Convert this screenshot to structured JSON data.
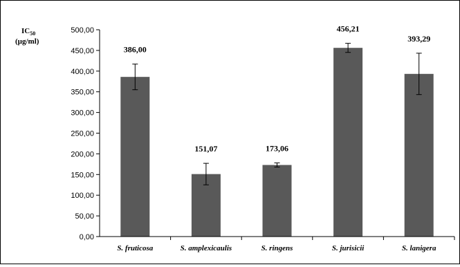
{
  "chart_data": {
    "type": "bar",
    "title": "",
    "ylabel_main": "IC",
    "ylabel_sub": "50",
    "ylabel_unit": "(µg/ml)",
    "xlabel": "",
    "ylim": [
      0,
      500
    ],
    "ytick_step": 50,
    "yticks": [
      "0,00",
      "50,00",
      "100,00",
      "150,00",
      "200,00",
      "250,00",
      "300,00",
      "350,00",
      "400,00",
      "450,00",
      "500,00"
    ],
    "grid": false,
    "categories": [
      "S. fruticosa",
      "S. amplexicaulis",
      "S. ringens",
      "S. jurisicii",
      "S. lanigera"
    ],
    "values": [
      386.0,
      151.07,
      173.06,
      456.21,
      393.29
    ],
    "value_labels": [
      "386,00",
      "151,07",
      "173,06",
      "456,21",
      "393,29"
    ],
    "error": [
      31,
      26,
      5,
      11,
      50
    ],
    "bar_color": "#595959",
    "error_color": "#000000"
  }
}
